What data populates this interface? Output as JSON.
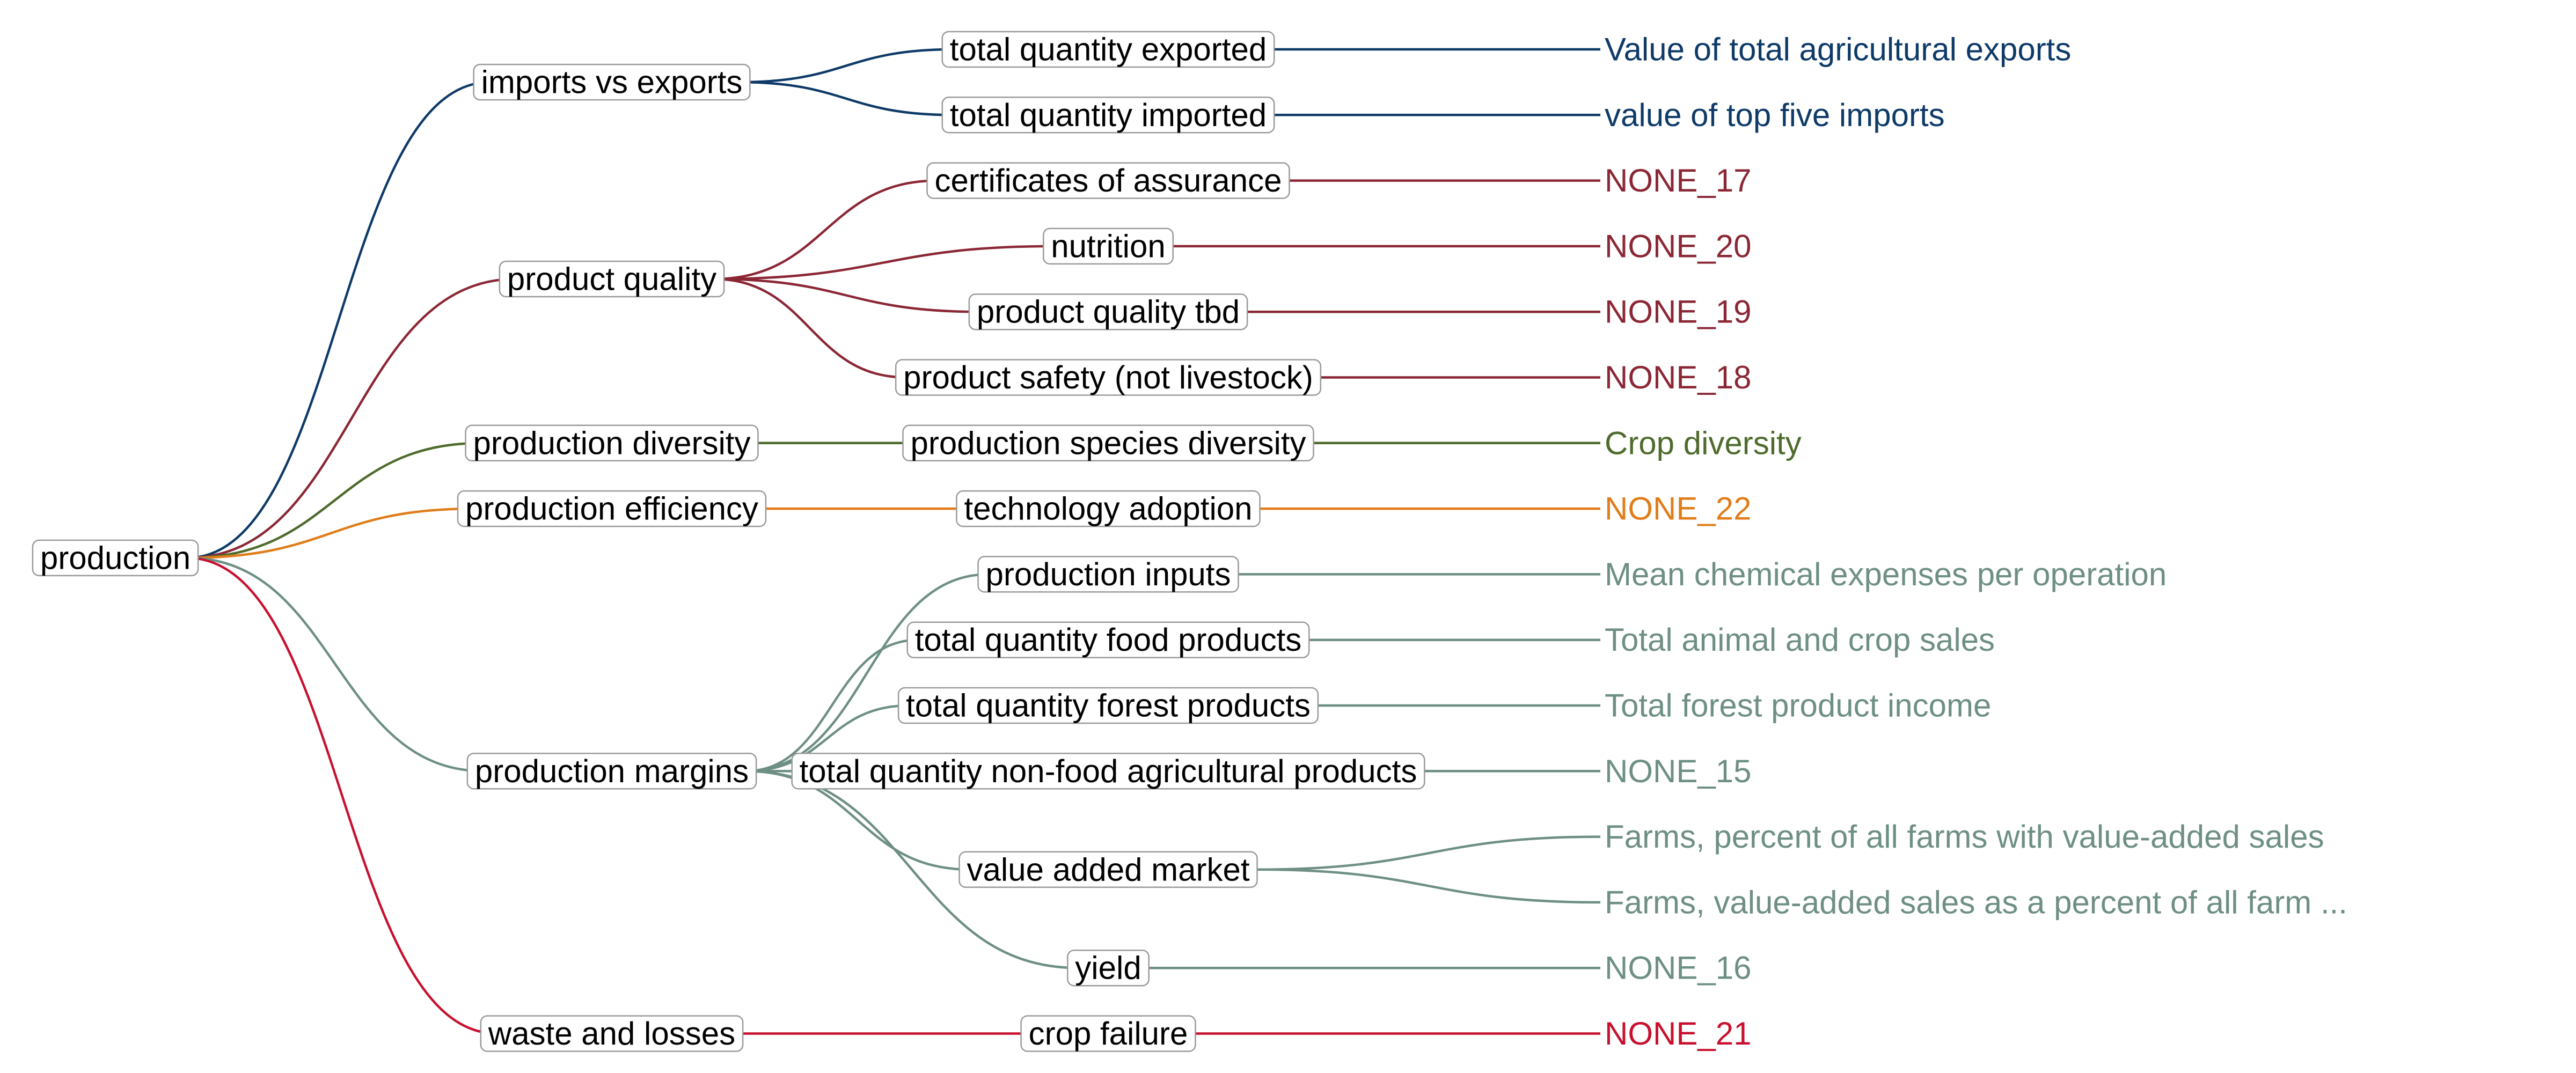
{
  "colors": {
    "imports_vs_exports": "#0e3a68",
    "product_quality": "#8b2735",
    "production_diversity": "#4e6b2c",
    "production_efficiency": "#e07d1a",
    "production_margins": "#6e8f83",
    "waste_and_losses": "#c8102e",
    "root_text": "#000000",
    "box_border": "#9a9a9a"
  },
  "tree": {
    "root": {
      "label": "production"
    },
    "branches": [
      {
        "id": "imports_vs_exports",
        "label": "imports vs exports",
        "children": [
          {
            "label": "total quantity exported",
            "leaves": [
              "Value of total agricultural exports"
            ]
          },
          {
            "label": "total quantity imported",
            "leaves": [
              "value of top five imports"
            ]
          }
        ]
      },
      {
        "id": "product_quality",
        "label": "product quality",
        "children": [
          {
            "label": "certificates of assurance",
            "leaves": [
              "NONE_17"
            ]
          },
          {
            "label": "nutrition",
            "leaves": [
              "NONE_20"
            ]
          },
          {
            "label": "product quality tbd",
            "leaves": [
              "NONE_19"
            ]
          },
          {
            "label": "product safety (not livestock)",
            "leaves": [
              "NONE_18"
            ]
          }
        ]
      },
      {
        "id": "production_diversity",
        "label": "production diversity",
        "children": [
          {
            "label": "production species diversity",
            "leaves": [
              "Crop diversity"
            ]
          }
        ]
      },
      {
        "id": "production_efficiency",
        "label": "production efficiency",
        "children": [
          {
            "label": "technology adoption",
            "leaves": [
              "NONE_22"
            ]
          }
        ]
      },
      {
        "id": "production_margins",
        "label": "production margins",
        "children": [
          {
            "label": "production inputs",
            "leaves": [
              "Mean chemical expenses per operation"
            ]
          },
          {
            "label": "total quantity food products",
            "leaves": [
              "Total animal and crop sales"
            ]
          },
          {
            "label": "total quantity forest products",
            "leaves": [
              "Total forest product income"
            ]
          },
          {
            "label": "total quantity non-food agricultural products",
            "leaves": [
              "NONE_15"
            ]
          },
          {
            "label": "value added market",
            "leaves": [
              "Farms, percent of all farms with value-added sales",
              "Farms, value-added sales as a percent of all farm ..."
            ]
          },
          {
            "label": "yield",
            "leaves": [
              "NONE_16"
            ]
          }
        ]
      },
      {
        "id": "waste_and_losses",
        "label": "waste and losses",
        "children": [
          {
            "label": "crop failure",
            "leaves": [
              "NONE_21"
            ]
          }
        ]
      }
    ]
  }
}
